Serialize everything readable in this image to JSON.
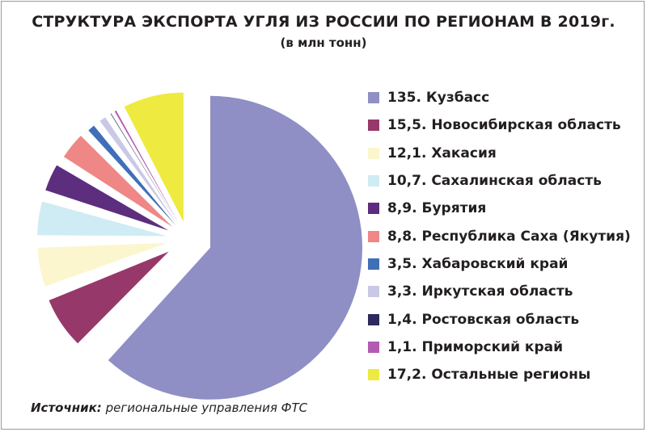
{
  "chart_data": {
    "type": "pie",
    "title": "СТРУКТУРА ЭКСПОРТА УГЛЯ ИЗ РОССИИ ПО РЕГИОНАМ В 2019г.",
    "subtitle": "(в млн тонн)",
    "legend_position": "right",
    "slices": [
      {
        "label": "135. Кузбасс",
        "value": 135,
        "color": "#8f8fc6"
      },
      {
        "label": "15,5. Новосибирская область",
        "value": 15.5,
        "color": "#96386a"
      },
      {
        "label": "12,1. Хакасия",
        "value": 12.1,
        "color": "#fbf6ce"
      },
      {
        "label": "10,7. Сахалинская область",
        "value": 10.7,
        "color": "#cfecf4"
      },
      {
        "label": "8,9. Бурятия",
        "value": 8.9,
        "color": "#5d2d7e"
      },
      {
        "label": "8,8. Республика Саха (Якутия)",
        "value": 8.8,
        "color": "#ef8787"
      },
      {
        "label": "3,5. Хабаровский край",
        "value": 3.5,
        "color": "#3f6fb7"
      },
      {
        "label": "3,3. Иркутская область",
        "value": 3.3,
        "color": "#c9c9e6"
      },
      {
        "label": "1,4. Ростовская область",
        "value": 1.4,
        "color": "#2a2a5c"
      },
      {
        "label": "1,1. Приморский край",
        "value": 1.1,
        "color": "#b35ab3"
      },
      {
        "label": "17,2. Остальные регионы",
        "value": 17.2,
        "color": "#eeea3f"
      }
    ]
  },
  "source": {
    "label": "Источник:",
    "text": "региональные управления ФТС"
  }
}
